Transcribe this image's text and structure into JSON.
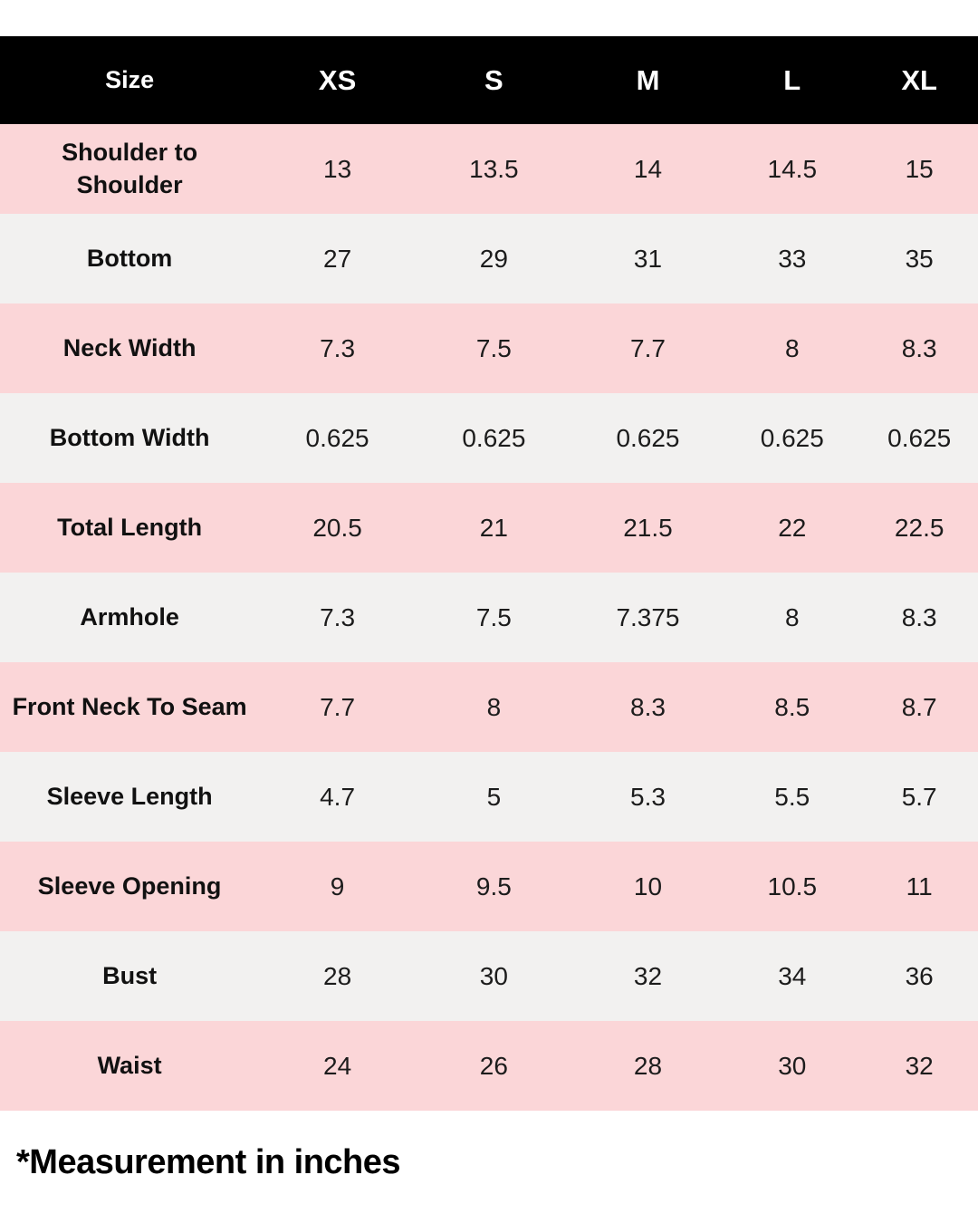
{
  "chart_data": {
    "type": "table",
    "columns": [
      "Size",
      "XS",
      "S",
      "M",
      "L",
      "XL"
    ],
    "rows": [
      {
        "label": "Shoulder to Shoulder",
        "values": [
          13,
          13.5,
          14,
          14.5,
          15
        ]
      },
      {
        "label": "Bottom",
        "values": [
          27,
          29,
          31,
          33,
          35
        ]
      },
      {
        "label": "Neck Width",
        "values": [
          7.3,
          7.5,
          7.7,
          8,
          8.3
        ]
      },
      {
        "label": "Bottom Width",
        "values": [
          0.625,
          0.625,
          0.625,
          0.625,
          0.625
        ]
      },
      {
        "label": "Total Length",
        "values": [
          20.5,
          21,
          21.5,
          22,
          22.5
        ]
      },
      {
        "label": "Armhole",
        "values": [
          7.3,
          7.5,
          7.375,
          8,
          8.3
        ]
      },
      {
        "label": "Front Neck To Seam",
        "values": [
          7.7,
          8,
          8.3,
          8.5,
          8.7
        ]
      },
      {
        "label": "Sleeve Length",
        "values": [
          4.7,
          5,
          5.3,
          5.5,
          5.7
        ]
      },
      {
        "label": "Sleeve Opening",
        "values": [
          9,
          9.5,
          10,
          10.5,
          11
        ]
      },
      {
        "label": "Bust",
        "values": [
          28,
          30,
          32,
          34,
          36
        ]
      },
      {
        "label": "Waist",
        "values": [
          24,
          26,
          28,
          30,
          32
        ]
      }
    ],
    "footnote": "*Measurement in inches",
    "layout": {
      "header_position": "top",
      "row_stripe_colors": [
        "pink",
        "gray"
      ],
      "grid": false
    }
  },
  "colors": {
    "header_bg": "#000000",
    "header_text": "#ffffff",
    "row_pink": "#fbd6d8",
    "row_gray": "#f2f1f0",
    "label_text": "#111111",
    "value_text": "#1c1c1c",
    "page_bg": "#ffffff"
  }
}
